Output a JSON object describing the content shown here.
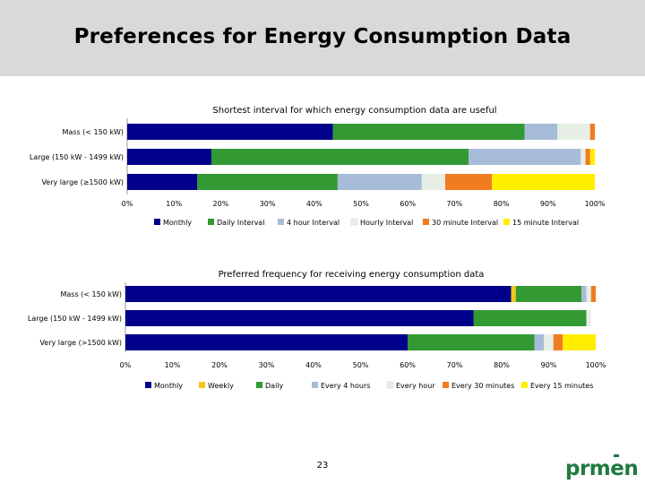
{
  "page": {
    "title": "Preferences for Energy Consumption Data",
    "page_number": "23",
    "logo_text": "prmen"
  },
  "chart_data": [
    {
      "type": "bar",
      "orientation": "horizontal",
      "stacked": true,
      "title": "Shortest interval for which energy consumption data are useful",
      "categories": [
        "Mass (< 150 kW)",
        "Large (150 kW - 1499 kW)",
        "Very large (≥1500 kW)"
      ],
      "series": [
        {
          "name": "Monthly",
          "color": "#00008b",
          "values": [
            44,
            18,
            15
          ]
        },
        {
          "name": "Daily Interval",
          "color": "#339933",
          "values": [
            41,
            55,
            30
          ]
        },
        {
          "name": "4 hour Interval",
          "color": "#a6bcd8",
          "values": [
            7,
            24,
            18
          ]
        },
        {
          "name": "Hourly Interval",
          "color": "#e6eee6",
          "values": [
            7,
            1,
            5
          ]
        },
        {
          "name": "30 minute Interval",
          "color": "#f07c21",
          "values": [
            1,
            1,
            10
          ]
        },
        {
          "name": "15 minute Interval",
          "color": "#ffee00",
          "values": [
            0,
            1,
            22
          ]
        }
      ],
      "xlim": [
        0,
        100
      ],
      "xticks": [
        "0%",
        "10%",
        "20%",
        "30%",
        "40%",
        "50%",
        "60%",
        "70%",
        "80%",
        "90%",
        "100%"
      ],
      "legend": "bottom"
    },
    {
      "type": "bar",
      "orientation": "horizontal",
      "stacked": true,
      "title": "Preferred frequency for receiving energy consumption data",
      "categories": [
        "Mass (< 150 kW)",
        "Large (150 kW - 1499 kW)",
        "Very large (>1500 kW)"
      ],
      "series": [
        {
          "name": "Monthly",
          "color": "#00008b",
          "values": [
            82,
            74,
            60
          ]
        },
        {
          "name": "Weekly",
          "color": "#f5c518",
          "values": [
            1,
            0,
            0
          ]
        },
        {
          "name": "Daily",
          "color": "#339933",
          "values": [
            14,
            24,
            27
          ]
        },
        {
          "name": "Every 4 hours",
          "color": "#a6bcd8",
          "values": [
            1,
            0,
            2
          ]
        },
        {
          "name": "Every hour",
          "color": "#e6eee6",
          "values": [
            1,
            1,
            2
          ]
        },
        {
          "name": "Every 30 minutes",
          "color": "#f07c21",
          "values": [
            1,
            0,
            2
          ]
        },
        {
          "name": "Every 15 minutes",
          "color": "#ffee00",
          "values": [
            0,
            0,
            7
          ]
        }
      ],
      "xlim": [
        0,
        100
      ],
      "xticks": [
        "0%",
        "10%",
        "20%",
        "30%",
        "40%",
        "50%",
        "60%",
        "70%",
        "80%",
        "90%",
        "100%"
      ],
      "legend": "bottom"
    }
  ]
}
